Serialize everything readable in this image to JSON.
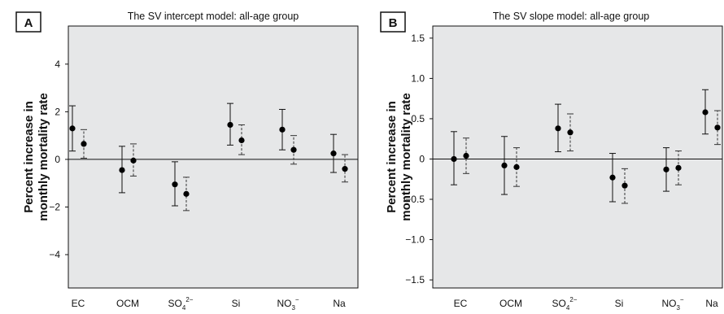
{
  "chart_data": [
    {
      "type": "scatter",
      "panel_label": "A",
      "title": "The SV intercept model: all-age group",
      "ylabel_lines": [
        "Percent increase in",
        "monthly mortality rate"
      ],
      "ylim": [
        -5.4,
        5.6
      ],
      "yticks": [
        4,
        2,
        0,
        -2,
        -4
      ],
      "ytick_labels": [
        "4",
        "2",
        "0",
        "−2",
        "−4"
      ],
      "categories": [
        "EC",
        "OCM",
        "SO42−",
        "Si",
        "NO3−",
        "Na"
      ],
      "category_labels": [
        {
          "base": "EC",
          "sub": "",
          "sup": ""
        },
        {
          "base": "OCM",
          "sub": "",
          "sup": ""
        },
        {
          "base": "SO",
          "sub": "4",
          "sup": "2−"
        },
        {
          "base": "Si",
          "sub": "",
          "sup": ""
        },
        {
          "base": "NO",
          "sub": "3",
          "sup": "−"
        },
        {
          "base": "Na",
          "sub": "",
          "sup": ""
        }
      ],
      "series": [
        {
          "style": "solid",
          "estimates": [
            1.3,
            -0.45,
            -1.05,
            1.45,
            1.25,
            0.25
          ],
          "lower": [
            0.35,
            -1.4,
            -1.95,
            0.6,
            0.4,
            -0.55
          ],
          "upper": [
            2.25,
            0.55,
            -0.1,
            2.35,
            2.1,
            1.05
          ]
        },
        {
          "style": "dashed",
          "estimates": [
            0.65,
            -0.05,
            -1.45,
            0.8,
            0.4,
            -0.4
          ],
          "lower": [
            0.05,
            -0.7,
            -2.15,
            0.2,
            -0.2,
            -0.95
          ],
          "upper": [
            1.25,
            0.65,
            -0.75,
            1.45,
            1.0,
            0.2
          ]
        }
      ]
    },
    {
      "type": "scatter",
      "panel_label": "B",
      "title": "The SV slope model: all-age group",
      "ylabel_lines": [
        "Percent increase in",
        "monthly mortality rate"
      ],
      "ylim": [
        -1.6,
        1.65
      ],
      "yticks": [
        1.5,
        1.0,
        0.5,
        0,
        -0.5,
        -1.0,
        -1.5
      ],
      "ytick_labels": [
        "1.5",
        "1.0",
        "0.5",
        "0",
        "−0.5",
        "−1.0",
        "−1.5"
      ],
      "categories": [
        "EC",
        "OCM",
        "SO42−",
        "Si",
        "NO3−",
        "Na"
      ],
      "category_labels": [
        {
          "base": "EC",
          "sub": "",
          "sup": ""
        },
        {
          "base": "OCM",
          "sub": "",
          "sup": ""
        },
        {
          "base": "SO",
          "sub": "4",
          "sup": "2−"
        },
        {
          "base": "Si",
          "sub": "",
          "sup": ""
        },
        {
          "base": "NO",
          "sub": "3",
          "sup": "−"
        },
        {
          "base": "Na",
          "sub": "",
          "sup": ""
        }
      ],
      "series": [
        {
          "style": "solid",
          "estimates": [
            0.0,
            -0.08,
            0.38,
            -0.23,
            -0.13,
            0.58
          ],
          "lower": [
            -0.32,
            -0.44,
            0.09,
            -0.53,
            -0.4,
            0.31
          ],
          "upper": [
            0.34,
            0.28,
            0.68,
            0.07,
            0.14,
            0.86
          ]
        },
        {
          "style": "dashed",
          "estimates": [
            0.04,
            -0.1,
            0.33,
            -0.33,
            -0.11,
            0.39
          ],
          "lower": [
            -0.18,
            -0.34,
            0.1,
            -0.55,
            -0.32,
            0.18
          ],
          "upper": [
            0.26,
            0.14,
            0.56,
            -0.12,
            0.1,
            0.6
          ]
        }
      ]
    }
  ]
}
